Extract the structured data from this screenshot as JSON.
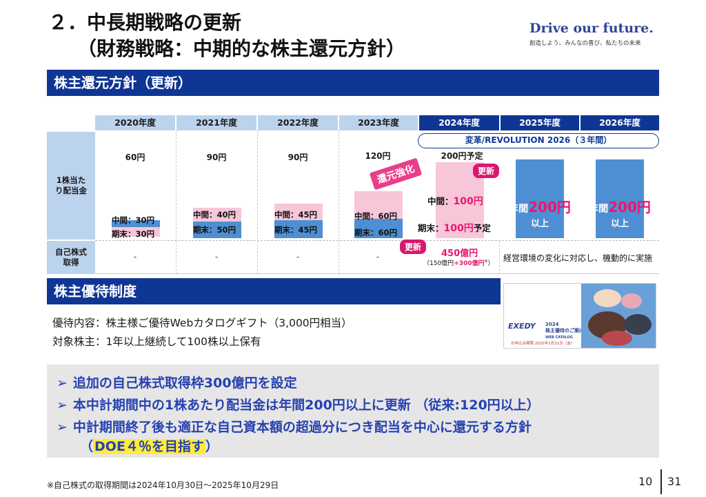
{
  "title": {
    "line1": "２．中長期戦略の更新",
    "line2": "（財務戦略：中期的な株主還元方針）"
  },
  "brand": {
    "slogan": "Drive our future.",
    "tagline": "創造しよう、みんなの喜び、私たちの未来"
  },
  "section1": {
    "title": "株主還元方針（更新）"
  },
  "table": {
    "years": [
      "2020年度",
      "2021年度",
      "2022年度",
      "2023年度",
      "2024年度",
      "2025年度",
      "2026年度"
    ],
    "row_dividend_label": "1株当たり配当金",
    "row_buyback_label": "自己株式取得",
    "dividends": [
      {
        "total": "60円",
        "interim": "中間：30円",
        "final": "期末：30円"
      },
      {
        "total": "90円",
        "interim": "中間：40円",
        "final": "期末：50円"
      },
      {
        "total": "90円",
        "interim": "中間：45円",
        "final": "期末：45円"
      },
      {
        "total": "120円",
        "interim": "中間：60円",
        "final": "期末：60円"
      }
    ],
    "plan_2024": {
      "total": "200円予定",
      "interim_label": "中間：",
      "interim_value": "100円",
      "final_label": "期末：",
      "final_value": "100円",
      "final_suffix": "予定"
    },
    "future": [
      {
        "prefix": "年間",
        "value": "200円",
        "suffix": "以上"
      },
      {
        "prefix": "年間",
        "value": "200円",
        "suffix": "以上"
      }
    ],
    "revolution_banner": "変革/REVOLUTION 2026（３年間）",
    "emphasis_label": "還元強化",
    "update_badge": "更新",
    "buyback_dash": "-",
    "buyback_2024_main": "450億円",
    "buyback_2024_detail_pre": "（150億円",
    "buyback_2024_detail_add": "+300億円",
    "buyback_2024_detail_mark": "※",
    "buyback_2024_detail_post": "）",
    "buyback_future": "経営環境の変化に対応し、機動的に実施"
  },
  "section2": {
    "title": "株主優待制度",
    "content": "優待内容：株主様ご優待Webカタログギフト（3,000円相当）",
    "eligibility": "対象株主：1年以上継続して100株以上保有"
  },
  "catalog": {
    "logo": "EXEDY",
    "line1": "2024",
    "line2": "株主優待のご案内",
    "line3": "WEB CATALOG",
    "note": "お申込み期限 2025年1月31日（金）"
  },
  "summary": {
    "bullet_mark": "➢",
    "lines": [
      "追加の自己株式取得枠300億円を設定",
      "本中計期間中の1株あたり配当金は年間200円以上に更新 （従来:120円以上）",
      "中計期間終了後も適正な自己資本額の超過分につき配当を中心に還元する方針"
    ],
    "doe_open": "（",
    "doe_text": "DOE４％を目指す",
    "doe_close": "）"
  },
  "footer": {
    "note": "※自己株式の取得期間は2024年10月30日～2025年10月29日",
    "page_current": "10",
    "page_total": "31"
  },
  "colors": {
    "navy": "#0f3694",
    "light_blue": "#bcd3ee",
    "bar_blue": "#4e8fd3",
    "pink": "#f7c6d9",
    "magenta": "#e8186f",
    "summary_text": "#2741b0"
  }
}
